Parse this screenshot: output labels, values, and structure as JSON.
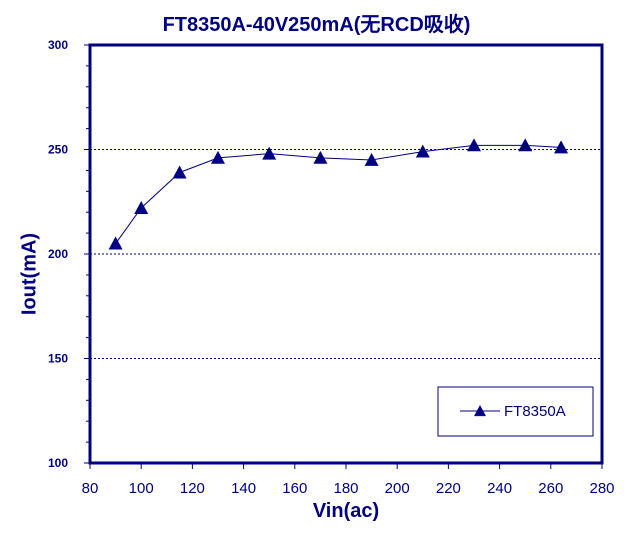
{
  "chart_data": {
    "type": "line",
    "title": "FT8350A-40V250mA(无RCD吸收)",
    "xlabel": "Vin(ac)",
    "ylabel": "Iout(mA)",
    "xlim": [
      80,
      280
    ],
    "ylim": [
      100,
      300
    ],
    "x_ticks": [
      "80",
      "100",
      "120",
      "140",
      "160",
      "180",
      "200",
      "220",
      "240",
      "260",
      "280"
    ],
    "y_ticks": [
      "100",
      "150",
      "200",
      "250",
      "300"
    ],
    "grid": "horizontal dashed at 150, 200, 250",
    "legend_position": "bottom-right",
    "series": [
      {
        "name": "FT8350A",
        "color": "#000080",
        "marker": "triangle",
        "x": [
          90,
          100,
          115,
          130,
          150,
          170,
          190,
          210,
          230,
          250,
          264
        ],
        "y": [
          205,
          222,
          239,
          246,
          248,
          246,
          245,
          249,
          252,
          252,
          251
        ]
      }
    ]
  }
}
